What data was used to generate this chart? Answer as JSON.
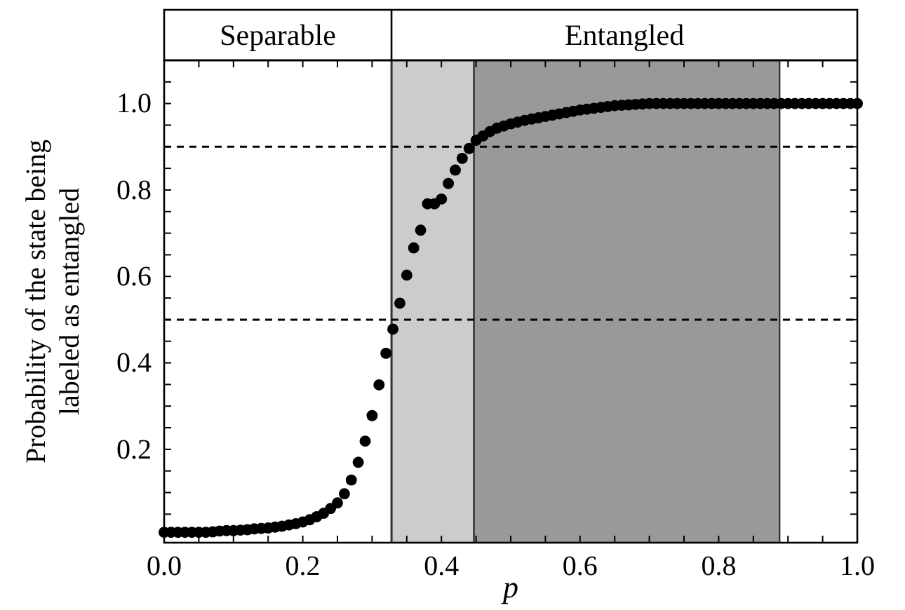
{
  "chart_data": {
    "type": "scatter",
    "xlabel": "p",
    "ylabel": "Probability of the state being\nlabeled as entangled",
    "annotations": [
      "Separable",
      "Entangled"
    ],
    "x": [
      0,
      0.01,
      0.02,
      0.03,
      0.04,
      0.05,
      0.06,
      0.07,
      0.08,
      0.09,
      0.1,
      0.11,
      0.12,
      0.13,
      0.14,
      0.15,
      0.16,
      0.17,
      0.18,
      0.19,
      0.2,
      0.21,
      0.22,
      0.23,
      0.24,
      0.25,
      0.26,
      0.27,
      0.28,
      0.29,
      0.3,
      0.31,
      0.32,
      0.33,
      0.34,
      0.35,
      0.36,
      0.37,
      0.38,
      0.39,
      0.4,
      0.41,
      0.42,
      0.43,
      0.44,
      0.45,
      0.46,
      0.47,
      0.48,
      0.49,
      0.5,
      0.51,
      0.52,
      0.53,
      0.54,
      0.55,
      0.56,
      0.57,
      0.58,
      0.59,
      0.6,
      0.61,
      0.62,
      0.63,
      0.64,
      0.65,
      0.66,
      0.67,
      0.68,
      0.69,
      0.7,
      0.71,
      0.72,
      0.73,
      0.74,
      0.75,
      0.76,
      0.77,
      0.78,
      0.79,
      0.8,
      0.81,
      0.82,
      0.83,
      0.84,
      0.85,
      0.86,
      0.87,
      0.88,
      0.89,
      0.9,
      0.91,
      0.92,
      0.93,
      0.94,
      0.95,
      0.96,
      0.97,
      0.98,
      0.99,
      1
    ],
    "values": [
      0.008,
      0.008,
      0.008,
      0.008,
      0.008,
      0.008,
      0.008,
      0.009,
      0.011,
      0.012,
      0.012,
      0.013,
      0.014,
      0.016,
      0.017,
      0.018,
      0.02,
      0.022,
      0.025,
      0.028,
      0.032,
      0.037,
      0.044,
      0.052,
      0.063,
      0.076,
      0.097,
      0.129,
      0.17,
      0.219,
      0.278,
      0.349,
      0.422,
      0.478,
      0.538,
      0.603,
      0.666,
      0.707,
      0.768,
      0.768,
      0.779,
      0.815,
      0.846,
      0.873,
      0.896,
      0.915,
      0.925,
      0.935,
      0.943,
      0.948,
      0.953,
      0.957,
      0.961,
      0.964,
      0.967,
      0.97,
      0.973,
      0.976,
      0.979,
      0.982,
      0.985,
      0.987,
      0.989,
      0.991,
      0.993,
      0.995,
      0.996,
      0.997,
      0.998,
      0.999,
      1,
      1,
      1,
      1,
      1,
      1,
      1,
      1,
      1,
      1,
      1,
      1,
      1,
      1,
      1,
      1,
      1,
      1,
      1,
      1,
      1,
      1,
      1,
      1,
      1,
      1,
      1,
      1,
      1,
      1,
      1
    ],
    "color": "#000000",
    "marker": "circle",
    "xlim": [
      0,
      1
    ],
    "ylim": [
      -0.016,
      1.1
    ],
    "xticks": [
      {
        "value": 0,
        "label": "0.0"
      },
      {
        "value": 0.05,
        "label": null
      },
      {
        "value": 0.1,
        "label": null
      },
      {
        "value": 0.15,
        "label": null
      },
      {
        "value": 0.2,
        "label": "0.2"
      },
      {
        "value": 0.25,
        "label": null
      },
      {
        "value": 0.3,
        "label": null
      },
      {
        "value": 0.35,
        "label": null
      },
      {
        "value": 0.4,
        "label": "0.4"
      },
      {
        "value": 0.45,
        "label": null
      },
      {
        "value": 0.5,
        "label": null
      },
      {
        "value": 0.55,
        "label": null
      },
      {
        "value": 0.6,
        "label": "0.6"
      },
      {
        "value": 0.65,
        "label": null
      },
      {
        "value": 0.7,
        "label": null
      },
      {
        "value": 0.75,
        "label": null
      },
      {
        "value": 0.8,
        "label": "0.8"
      },
      {
        "value": 0.85,
        "label": null
      },
      {
        "value": 0.9,
        "label": null
      },
      {
        "value": 0.95,
        "label": null
      },
      {
        "value": 1,
        "label": "1.0"
      }
    ],
    "yticks": [
      {
        "value": 0.05,
        "label": null
      },
      {
        "value": 0.1,
        "label": null
      },
      {
        "value": 0.15,
        "label": null
      },
      {
        "value": 0.2,
        "label": "0.2"
      },
      {
        "value": 0.25,
        "label": null
      },
      {
        "value": 0.3,
        "label": null
      },
      {
        "value": 0.35,
        "label": null
      },
      {
        "value": 0.4,
        "label": "0.4"
      },
      {
        "value": 0.45,
        "label": null
      },
      {
        "value": 0.5,
        "label": null
      },
      {
        "value": 0.55,
        "label": null
      },
      {
        "value": 0.6,
        "label": "0.6"
      },
      {
        "value": 0.65,
        "label": null
      },
      {
        "value": 0.7,
        "label": null
      },
      {
        "value": 0.75,
        "label": null
      },
      {
        "value": 0.8,
        "label": "0.8"
      },
      {
        "value": 0.85,
        "label": null
      },
      {
        "value": 0.9,
        "label": null
      },
      {
        "value": 0.95,
        "label": null
      },
      {
        "value": 1,
        "label": "1.0"
      },
      {
        "value": 1.05,
        "label": null
      }
    ],
    "bands": [
      {
        "axis": "x",
        "from": 0.328,
        "to": 0.447,
        "color": "#cccccc"
      },
      {
        "axis": "x",
        "from": 0.447,
        "to": 0.888,
        "color": "#999999"
      }
    ],
    "ref_lines": [
      {
        "axis": "x",
        "value": 0.328,
        "color": "#333333",
        "line_style": "solid"
      },
      {
        "axis": "y",
        "value": 0.9,
        "color": "#000000",
        "line_style": "dashed"
      },
      {
        "axis": "y",
        "value": 0.5,
        "color": "#000000",
        "line_style": "dashed"
      }
    ],
    "grid": false
  }
}
